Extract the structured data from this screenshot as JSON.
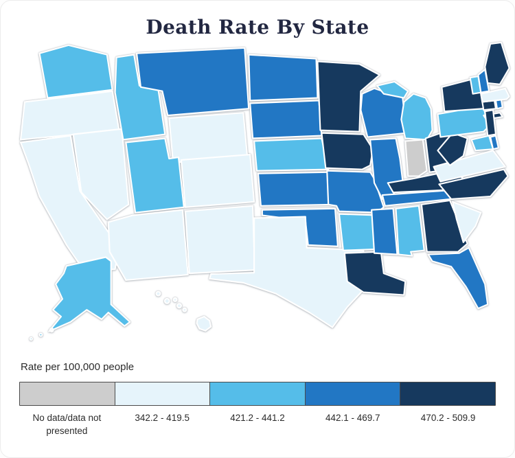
{
  "title": "Death Rate By State",
  "legend": {
    "caption": "Rate per 100,000 people",
    "categories": [
      {
        "id": "no-data",
        "label": "No data/data not presented",
        "color": "#cdcdcd"
      },
      {
        "id": "band-1",
        "label": "342.2 - 419.5",
        "color": "#e6f4fb"
      },
      {
        "id": "band-2",
        "label": "421.2 - 441.2",
        "color": "#55bde9"
      },
      {
        "id": "band-3",
        "label": "442.1 - 469.7",
        "color": "#2277c4"
      },
      {
        "id": "band-4",
        "label": "470.2 - 509.9",
        "color": "#16395e"
      }
    ]
  },
  "chart_data": {
    "type": "choropleth",
    "region": "United States",
    "title": "Death Rate By State",
    "unit_label": "Rate per 100,000 people",
    "legend_position": "bottom",
    "bands": [
      "No data/data not presented",
      "342.2 - 419.5",
      "421.2 - 441.2",
      "442.1 - 469.7",
      "470.2 - 509.9"
    ],
    "state_bands": {
      "WA": 2,
      "OR": 1,
      "CA": 1,
      "NV": 1,
      "ID": 2,
      "MT": 3,
      "WY": 1,
      "UT": 2,
      "CO": 1,
      "AZ": 1,
      "NM": 1,
      "ND": 3,
      "SD": 3,
      "NE": 2,
      "KS": 3,
      "OK": 3,
      "TX": 1,
      "MN": 4,
      "IA": 4,
      "MO": 3,
      "AR": 2,
      "LA": 4,
      "WI": 3,
      "IL": 3,
      "MI": 2,
      "IN": 0,
      "OH": 4,
      "KY": 4,
      "TN": 3,
      "MS": 3,
      "AL": 2,
      "GA": 4,
      "FL": 3,
      "SC": 1,
      "NC": 4,
      "VA": 1,
      "WV": 4,
      "PA": 2,
      "NY": 4,
      "NJ": 4,
      "CT": 4,
      "RI": 3,
      "MA": 1,
      "VT": 2,
      "NH": 3,
      "ME": 4,
      "DE": 3,
      "MD": 2,
      "AK": 2,
      "HI": 1
    }
  }
}
